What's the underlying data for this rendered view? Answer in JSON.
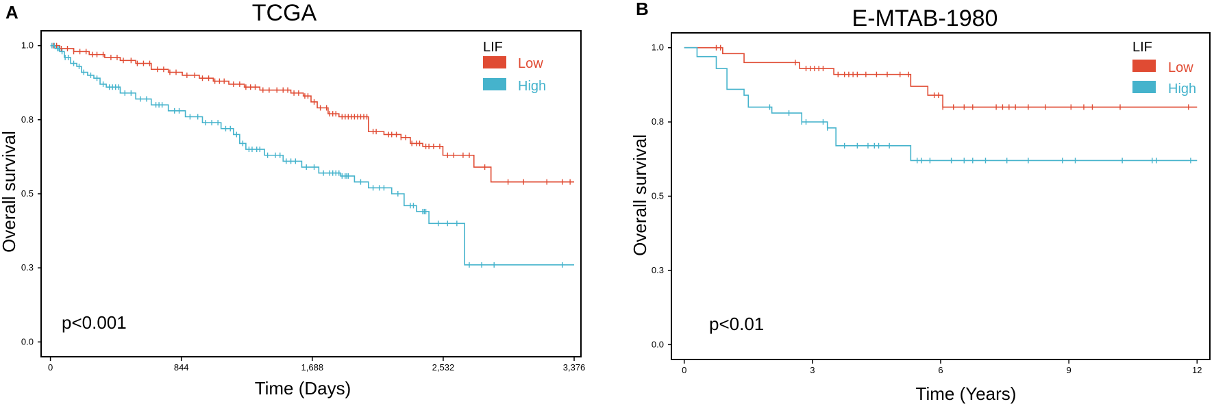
{
  "colors": {
    "low": "#e04b33",
    "high": "#45b3cc",
    "axis": "#000000"
  },
  "chart_data": [
    {
      "type": "line",
      "panel": "A",
      "title": "TCGA",
      "xlabel": "Time (Days)",
      "ylabel": "Overall survival",
      "xlim": [
        -60,
        3420
      ],
      "ylim": [
        -0.05,
        1.05
      ],
      "xticks": [
        0,
        844,
        1688,
        2532,
        3376
      ],
      "xtick_labels": [
        "0",
        "844",
        "1,688",
        "2,532",
        "3,376"
      ],
      "yticks": [
        0.0,
        0.25,
        0.5,
        0.75,
        1.0
      ],
      "ytick_labels": [
        "0.0",
        "0.3",
        "0.5",
        "0.8",
        "1.0"
      ],
      "legend": {
        "title": "LIF",
        "position": "top-right",
        "entries": [
          "Low",
          "High"
        ]
      },
      "annotation": "p<0.001",
      "series": [
        {
          "name": "Low",
          "color_key": "low",
          "steps": [
            [
              0,
              1.0
            ],
            [
              60,
              0.99
            ],
            [
              150,
              0.98
            ],
            [
              250,
              0.97
            ],
            [
              350,
              0.96
            ],
            [
              450,
              0.95
            ],
            [
              550,
              0.94
            ],
            [
              650,
              0.92
            ],
            [
              760,
              0.91
            ],
            [
              850,
              0.9
            ],
            [
              960,
              0.89
            ],
            [
              1050,
              0.88
            ],
            [
              1150,
              0.87
            ],
            [
              1250,
              0.86
            ],
            [
              1350,
              0.85
            ],
            [
              1450,
              0.85
            ],
            [
              1550,
              0.84
            ],
            [
              1630,
              0.83
            ],
            [
              1680,
              0.81
            ],
            [
              1720,
              0.79
            ],
            [
              1790,
              0.77
            ],
            [
              1860,
              0.76
            ],
            [
              2050,
              0.71
            ],
            [
              2150,
              0.7
            ],
            [
              2260,
              0.69
            ],
            [
              2320,
              0.67
            ],
            [
              2400,
              0.66
            ],
            [
              2530,
              0.63
            ],
            [
              2730,
              0.59
            ],
            [
              2840,
              0.54
            ],
            [
              3376,
              0.54
            ]
          ],
          "censors": [
            20,
            40,
            70,
            110,
            150,
            190,
            230,
            270,
            300,
            340,
            390,
            430,
            470,
            520,
            560,
            600,
            640,
            690,
            730,
            770,
            810,
            880,
            930,
            980,
            1020,
            1060,
            1090,
            1120,
            1180,
            1220,
            1260,
            1290,
            1320,
            1370,
            1410,
            1460,
            1500,
            1530,
            1570,
            1600,
            1640,
            1660,
            1700,
            1740,
            1780,
            1800,
            1820,
            1840,
            1880,
            1900,
            1920,
            1940,
            1960,
            1980,
            2000,
            2020,
            2040,
            2080,
            2100,
            2180,
            2200,
            2230,
            2260,
            2290,
            2330,
            2360,
            2380,
            2420,
            2440,
            2470,
            2510,
            2560,
            2600,
            2660,
            2700,
            2800,
            2950,
            3050,
            3200,
            3300,
            3350
          ]
        },
        {
          "name": "High",
          "color_key": "high",
          "steps": [
            [
              0,
              1.0
            ],
            [
              30,
              0.99
            ],
            [
              60,
              0.98
            ],
            [
              90,
              0.96
            ],
            [
              130,
              0.94
            ],
            [
              170,
              0.93
            ],
            [
              200,
              0.91
            ],
            [
              240,
              0.9
            ],
            [
              280,
              0.89
            ],
            [
              320,
              0.87
            ],
            [
              360,
              0.86
            ],
            [
              450,
              0.84
            ],
            [
              550,
              0.82
            ],
            [
              650,
              0.8
            ],
            [
              760,
              0.78
            ],
            [
              870,
              0.76
            ],
            [
              980,
              0.74
            ],
            [
              1100,
              0.72
            ],
            [
              1180,
              0.7
            ],
            [
              1220,
              0.67
            ],
            [
              1260,
              0.65
            ],
            [
              1380,
              0.63
            ],
            [
              1500,
              0.61
            ],
            [
              1620,
              0.59
            ],
            [
              1730,
              0.57
            ],
            [
              1870,
              0.56
            ],
            [
              1960,
              0.54
            ],
            [
              2050,
              0.52
            ],
            [
              2200,
              0.5
            ],
            [
              2280,
              0.46
            ],
            [
              2360,
              0.44
            ],
            [
              2440,
              0.4
            ],
            [
              2650,
              0.4
            ],
            [
              2670,
              0.26
            ],
            [
              3376,
              0.26
            ]
          ],
          "censors": [
            10,
            25,
            45,
            55,
            75,
            95,
            115,
            150,
            185,
            215,
            260,
            300,
            340,
            380,
            400,
            420,
            440,
            480,
            520,
            580,
            620,
            680,
            700,
            720,
            800,
            830,
            900,
            950,
            1000,
            1040,
            1080,
            1130,
            1160,
            1200,
            1240,
            1280,
            1300,
            1330,
            1350,
            1400,
            1450,
            1480,
            1520,
            1550,
            1580,
            1650,
            1700,
            1760,
            1800,
            1820,
            1840,
            1860,
            1880,
            1900,
            1910,
            1920,
            2000,
            2080,
            2120,
            2150,
            2240,
            2320,
            2340,
            2400,
            2410,
            2420,
            2500,
            2560,
            2620,
            2700,
            2780,
            2860,
            3300
          ]
        }
      ]
    },
    {
      "type": "line",
      "panel": "B",
      "title": "E-MTAB-1980",
      "xlabel": "Time (Years)",
      "ylabel": "Overall survival",
      "xlim": [
        -0.3,
        12.3
      ],
      "ylim": [
        -0.05,
        1.05
      ],
      "xticks": [
        0,
        3,
        6,
        9,
        12
      ],
      "xtick_labels": [
        "0",
        "3",
        "6",
        "9",
        "12"
      ],
      "yticks": [
        0.0,
        0.25,
        0.5,
        0.75,
        1.0
      ],
      "ytick_labels": [
        "0.0",
        "0.3",
        "0.5",
        "0.8",
        "1.0"
      ],
      "legend": {
        "title": "LIF",
        "position": "top-right",
        "entries": [
          "Low",
          "High"
        ]
      },
      "annotation": "p<0.01",
      "series": [
        {
          "name": "Low",
          "color_key": "low",
          "steps": [
            [
              0,
              1.0
            ],
            [
              0.9,
              0.98
            ],
            [
              1.0,
              0.98
            ],
            [
              1.4,
              0.95
            ],
            [
              2.7,
              0.93
            ],
            [
              3.5,
              0.91
            ],
            [
              5.3,
              0.87
            ],
            [
              5.7,
              0.84
            ],
            [
              6.05,
              0.8
            ],
            [
              12,
              0.8
            ]
          ],
          "censors": [
            0.75,
            0.85,
            2.6,
            2.85,
            2.95,
            3.05,
            3.15,
            3.25,
            3.6,
            3.75,
            3.85,
            3.95,
            4.05,
            4.25,
            4.5,
            4.75,
            5.05,
            5.25,
            5.85,
            5.95,
            6.05,
            6.3,
            6.55,
            6.75,
            7.3,
            7.45,
            7.6,
            7.75,
            8.05,
            8.45,
            9.05,
            9.35,
            9.55,
            10.2,
            11.8
          ]
        },
        {
          "name": "High",
          "color_key": "high",
          "steps": [
            [
              0,
              1.0
            ],
            [
              0.3,
              0.97
            ],
            [
              0.75,
              0.93
            ],
            [
              1.0,
              0.86
            ],
            [
              1.4,
              0.84
            ],
            [
              1.5,
              0.8
            ],
            [
              2.05,
              0.78
            ],
            [
              2.75,
              0.75
            ],
            [
              3.35,
              0.73
            ],
            [
              3.55,
              0.67
            ],
            [
              4.75,
              0.67
            ],
            [
              5.3,
              0.62
            ],
            [
              12,
              0.62
            ]
          ],
          "censors": [
            2.0,
            2.45,
            2.75,
            2.85,
            3.25,
            3.35,
            3.75,
            4.05,
            4.3,
            4.45,
            4.55,
            4.8,
            5.45,
            5.55,
            5.75,
            6.25,
            6.55,
            6.75,
            7.05,
            7.55,
            8.05,
            8.85,
            9.15,
            10.25,
            10.95,
            11.05,
            11.85
          ]
        }
      ]
    }
  ]
}
